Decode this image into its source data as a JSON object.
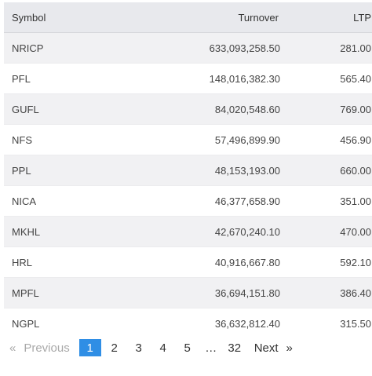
{
  "table": {
    "headers": {
      "symbol": "Symbol",
      "turnover": "Turnover",
      "ltp": "LTP"
    },
    "rows": [
      {
        "symbol": "NRICP",
        "turnover": "633,093,258.50",
        "ltp": "281.00"
      },
      {
        "symbol": "PFL",
        "turnover": "148,016,382.30",
        "ltp": "565.40"
      },
      {
        "symbol": "GUFL",
        "turnover": "84,020,548.60",
        "ltp": "769.00"
      },
      {
        "symbol": "NFS",
        "turnover": "57,496,899.90",
        "ltp": "456.90"
      },
      {
        "symbol": "PPL",
        "turnover": "48,153,193.00",
        "ltp": "660.00"
      },
      {
        "symbol": "NICA",
        "turnover": "46,377,658.90",
        "ltp": "351.00"
      },
      {
        "symbol": "MKHL",
        "turnover": "42,670,240.10",
        "ltp": "470.00"
      },
      {
        "symbol": "HRL",
        "turnover": "40,916,667.80",
        "ltp": "592.10"
      },
      {
        "symbol": "MPFL",
        "turnover": "36,694,151.80",
        "ltp": "386.40"
      },
      {
        "symbol": "NGPL",
        "turnover": "36,632,812.40",
        "ltp": "315.50"
      }
    ]
  },
  "pagination": {
    "prev_arrow": "«",
    "prev_label": "Previous",
    "pages": [
      "1",
      "2",
      "3",
      "4",
      "5"
    ],
    "active_page": "1",
    "ellipsis": "…",
    "last_page": "32",
    "next_label": "Next",
    "next_arrow": "»",
    "colors": {
      "active_bg": "#2f8ee5",
      "disabled_text": "#a9a9a9"
    }
  }
}
